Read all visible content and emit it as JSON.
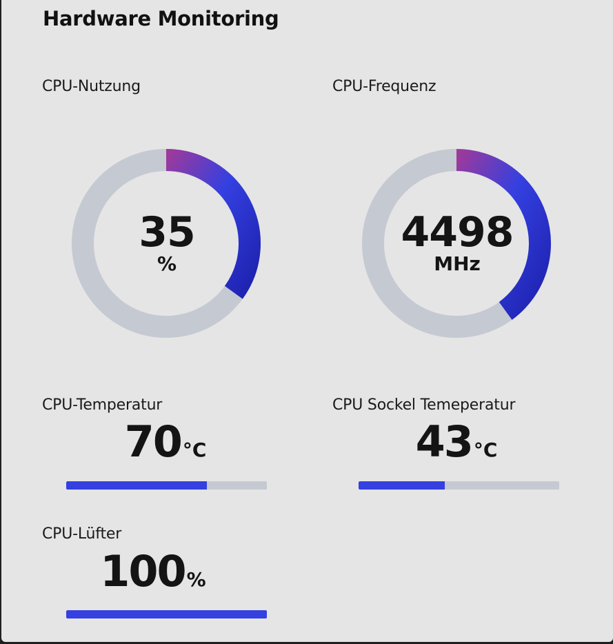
{
  "title": "Hardware Monitoring",
  "colors": {
    "panel_bg": "#e5e5e5",
    "track": "#c5c9d2",
    "bar_fill": "#3440e0",
    "gauge_start": "#9b3a9c",
    "gauge_mid": "#3440e0",
    "gauge_end": "#1e22b0"
  },
  "cpu_usage": {
    "label": "CPU-Nutzung",
    "value": "35",
    "unit": "%",
    "fraction": 0.35
  },
  "cpu_frequency": {
    "label": "CPU-Frequenz",
    "value": "4498",
    "unit": "MHz",
    "fraction": 0.4
  },
  "cpu_temperature": {
    "label": "CPU-Temperatur",
    "value": "70",
    "unit": "°C",
    "fraction": 0.7
  },
  "socket_temperature": {
    "label": "CPU Sockel Temeperatur",
    "value": "43",
    "unit": "°C",
    "fraction": 0.43
  },
  "cpu_fan": {
    "label": "CPU-Lüfter",
    "value": "100",
    "unit": "%",
    "fraction": 1.0
  }
}
